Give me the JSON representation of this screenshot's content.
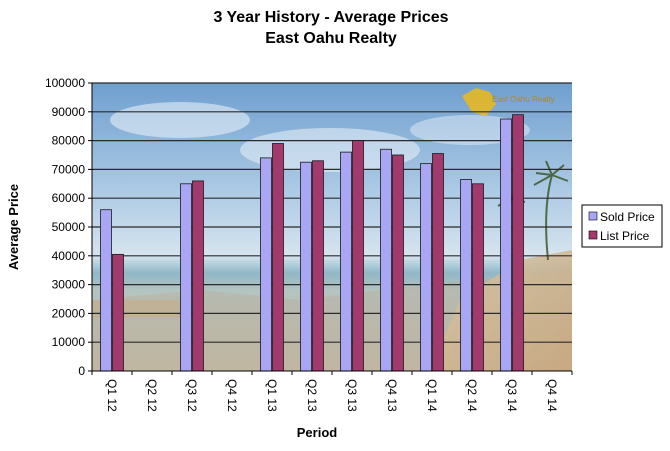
{
  "chart_data": {
    "type": "bar",
    "title": "3 Year History - Average Prices",
    "subtitle": "East Oahu Realty",
    "xlabel": "Period",
    "ylabel": "Average Price",
    "ylim": [
      0,
      100000
    ],
    "yticks": [
      "0",
      "10000",
      "20000",
      "30000",
      "40000",
      "50000",
      "60000",
      "70000",
      "80000",
      "90000",
      "100000"
    ],
    "grid": true,
    "legend_position": "right",
    "categories": [
      "Q1 12",
      "Q2 12",
      "Q3 12",
      "Q4 12",
      "Q1 13",
      "Q2 13",
      "Q3 13",
      "Q4 13",
      "Q1 14",
      "Q2 14",
      "Q3 14",
      "Q4 14"
    ],
    "series": [
      {
        "name": "Sold Price",
        "color": "#a9a6f5",
        "values": [
          56000,
          null,
          65000,
          null,
          74000,
          72500,
          76000,
          77000,
          72000,
          66500,
          87500,
          null
        ]
      },
      {
        "name": "List Price",
        "color": "#a33a6e",
        "values": [
          40500,
          null,
          66000,
          null,
          79000,
          73000,
          80000,
          75000,
          75500,
          65000,
          89000,
          null
        ]
      }
    ]
  },
  "logo_text": "East Oahu Realty"
}
